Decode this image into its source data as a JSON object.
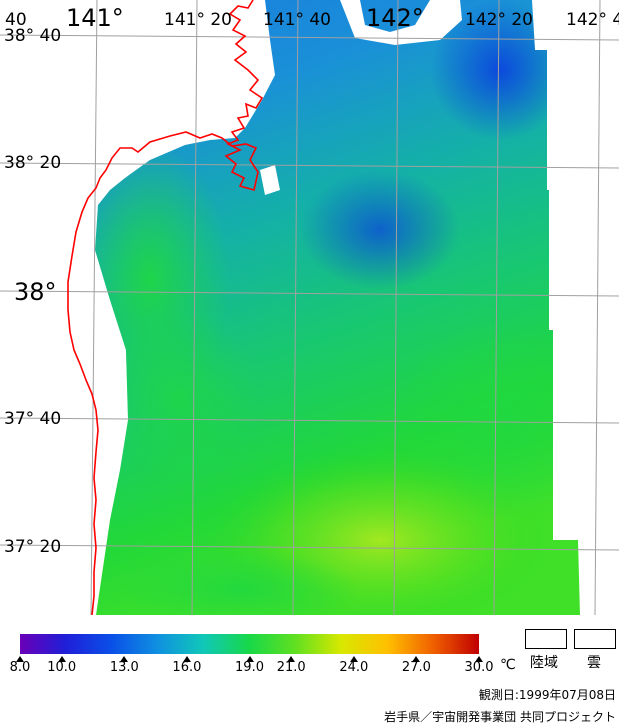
{
  "map": {
    "lon_labels": [
      {
        "text": "40",
        "cls": "med"
      },
      {
        "text": "141°",
        "cls": "big"
      },
      {
        "text": "141° 20",
        "cls": "med"
      },
      {
        "text": "141° 40",
        "cls": "med"
      },
      {
        "text": "142°",
        "cls": "big"
      },
      {
        "text": "142° 20",
        "cls": "med"
      },
      {
        "text": "142° 4",
        "cls": "med"
      }
    ],
    "lat_labels": [
      {
        "text": "38° 40",
        "cls": "med"
      },
      {
        "text": "38° 20",
        "cls": "med"
      },
      {
        "text": "38°",
        "cls": "big"
      },
      {
        "text": "37° 40",
        "cls": "med"
      },
      {
        "text": "37° 20",
        "cls": "med"
      }
    ],
    "coastline_color": "#ff0000",
    "grid_color": "#a0a0a0",
    "land_color": "#ffffff"
  },
  "legend": {
    "min": 8.0,
    "max": 30.0,
    "ticks": [
      "8.0",
      "10.0",
      "13.0",
      "16.0",
      "19.0",
      "21.0",
      "24.0",
      "27.0",
      "30.0"
    ],
    "tick_values": [
      8,
      10,
      13,
      16,
      19,
      21,
      24,
      27,
      30
    ],
    "unit": "℃",
    "colors": [
      "#6a00b8",
      "#1f1fd8",
      "#0a50e8",
      "#1090e0",
      "#10c8b8",
      "#18d848",
      "#60e020",
      "#d8e800",
      "#ffc000",
      "#f06000",
      "#c00000"
    ],
    "land_label": "陸域",
    "cloud_label": "雲"
  },
  "footer": {
    "obs_date": "観測日:1999年07月08日",
    "credit": "岩手県／宇宙開発事業団 共同プロジェクト"
  }
}
